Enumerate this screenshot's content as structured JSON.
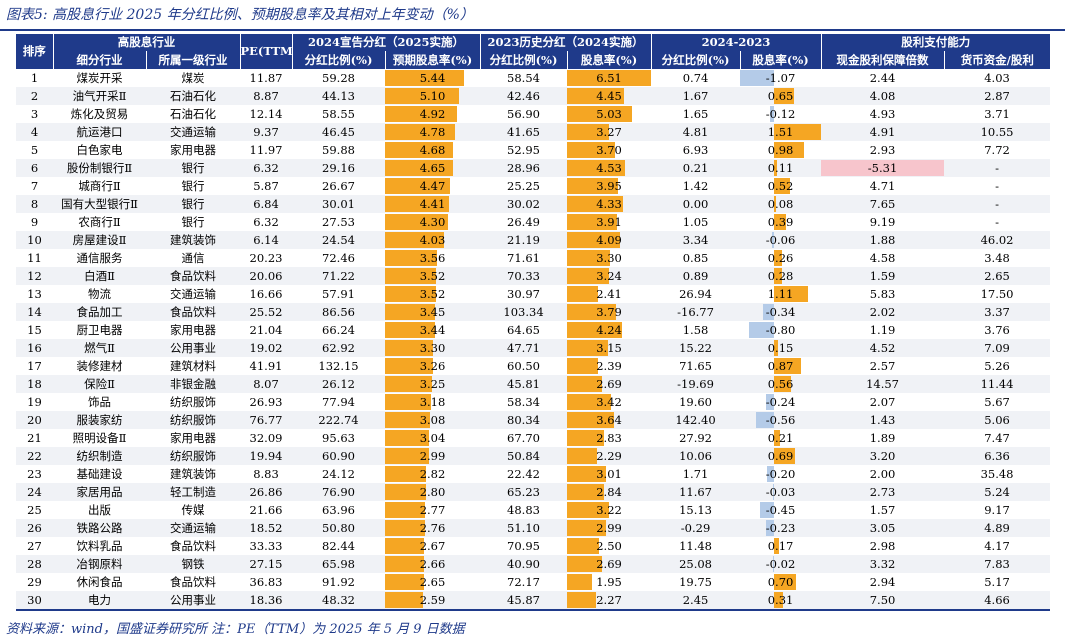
{
  "title": "图表5: 高股息行业 2025 年分红比例、预期股息率及其相对上年变动（%）",
  "footnote": "资料来源：wind，国盛证券研究所 注：PE（TTM）为 2025 年 5 月 9 日数据",
  "headers": {
    "rank": "排序",
    "group_industry": "高股息行业",
    "pe": "PE(TTM)",
    "group_2024": "2024宣告分红（2025实施）",
    "group_2023": "2023历史分红（2024实施）",
    "group_change": "2024-2023",
    "group_capacity": "股利支付能力",
    "sub_industry": "细分行业",
    "sw1": "所属一级行业",
    "payout_2024": "分红比例(%)",
    "yield_2024": "预期股息率(%)",
    "payout_2023": "分红比例(%)",
    "yield_2023": "股息率(%)",
    "payout_change": "分红比例(%)",
    "yield_change": "股息率(%)",
    "cash_coverage": "现金股利保障倍数",
    "cash_ratio": "货币资金/股利"
  },
  "rows": [
    {
      "rank": "1",
      "sub": "煤炭开采",
      "sw1": "煤炭",
      "pe": "11.87",
      "payout_2024": "59.28",
      "yield_2024": "5.44",
      "payout_2023": "58.54",
      "yield_2023": "6.51",
      "payout_chg": "0.74",
      "yield_chg": "-1.07",
      "coverage": "2.44",
      "cash": "4.03"
    },
    {
      "rank": "2",
      "sub": "油气开采Ⅱ",
      "sw1": "石油石化",
      "pe": "8.87",
      "payout_2024": "44.13",
      "yield_2024": "5.10",
      "payout_2023": "42.46",
      "yield_2023": "4.45",
      "payout_chg": "1.67",
      "yield_chg": "0.65",
      "coverage": "4.08",
      "cash": "2.87"
    },
    {
      "rank": "3",
      "sub": "炼化及贸易",
      "sw1": "石油石化",
      "pe": "12.14",
      "payout_2024": "58.55",
      "yield_2024": "4.92",
      "payout_2023": "56.90",
      "yield_2023": "5.03",
      "payout_chg": "1.65",
      "yield_chg": "-0.12",
      "coverage": "4.93",
      "cash": "3.71"
    },
    {
      "rank": "4",
      "sub": "航运港口",
      "sw1": "交通运输",
      "pe": "9.37",
      "payout_2024": "46.45",
      "yield_2024": "4.78",
      "payout_2023": "41.65",
      "yield_2023": "3.27",
      "payout_chg": "4.81",
      "yield_chg": "1.51",
      "coverage": "4.91",
      "cash": "10.55"
    },
    {
      "rank": "5",
      "sub": "白色家电",
      "sw1": "家用电器",
      "pe": "11.97",
      "payout_2024": "59.88",
      "yield_2024": "4.68",
      "payout_2023": "52.95",
      "yield_2023": "3.70",
      "payout_chg": "6.93",
      "yield_chg": "0.98",
      "coverage": "2.93",
      "cash": "7.72"
    },
    {
      "rank": "6",
      "sub": "股份制银行Ⅱ",
      "sw1": "银行",
      "pe": "6.32",
      "payout_2024": "29.16",
      "yield_2024": "4.65",
      "payout_2023": "28.96",
      "yield_2023": "4.53",
      "payout_chg": "0.21",
      "yield_chg": "0.11",
      "coverage": "-5.31",
      "cash": "-"
    },
    {
      "rank": "7",
      "sub": "城商行Ⅱ",
      "sw1": "银行",
      "pe": "5.87",
      "payout_2024": "26.67",
      "yield_2024": "4.47",
      "payout_2023": "25.25",
      "yield_2023": "3.95",
      "payout_chg": "1.42",
      "yield_chg": "0.52",
      "coverage": "4.71",
      "cash": "-"
    },
    {
      "rank": "8",
      "sub": "国有大型银行Ⅱ",
      "sw1": "银行",
      "pe": "6.84",
      "payout_2024": "30.01",
      "yield_2024": "4.41",
      "payout_2023": "30.02",
      "yield_2023": "4.33",
      "payout_chg": "0.00",
      "yield_chg": "0.08",
      "coverage": "7.65",
      "cash": "-"
    },
    {
      "rank": "9",
      "sub": "农商行Ⅱ",
      "sw1": "银行",
      "pe": "6.32",
      "payout_2024": "27.53",
      "yield_2024": "4.30",
      "payout_2023": "26.49",
      "yield_2023": "3.91",
      "payout_chg": "1.05",
      "yield_chg": "0.39",
      "coverage": "9.19",
      "cash": "-"
    },
    {
      "rank": "10",
      "sub": "房屋建设Ⅱ",
      "sw1": "建筑装饰",
      "pe": "6.14",
      "payout_2024": "24.54",
      "yield_2024": "4.03",
      "payout_2023": "21.19",
      "yield_2023": "4.09",
      "payout_chg": "3.34",
      "yield_chg": "-0.06",
      "coverage": "1.88",
      "cash": "46.02"
    },
    {
      "rank": "11",
      "sub": "通信服务",
      "sw1": "通信",
      "pe": "20.23",
      "payout_2024": "72.46",
      "yield_2024": "3.56",
      "payout_2023": "71.61",
      "yield_2023": "3.30",
      "payout_chg": "0.85",
      "yield_chg": "0.26",
      "coverage": "4.58",
      "cash": "3.48"
    },
    {
      "rank": "12",
      "sub": "白酒Ⅱ",
      "sw1": "食品饮料",
      "pe": "20.06",
      "payout_2024": "71.22",
      "yield_2024": "3.52",
      "payout_2023": "70.33",
      "yield_2023": "3.24",
      "payout_chg": "0.89",
      "yield_chg": "0.28",
      "coverage": "1.59",
      "cash": "2.65"
    },
    {
      "rank": "13",
      "sub": "物流",
      "sw1": "交通运输",
      "pe": "16.66",
      "payout_2024": "57.91",
      "yield_2024": "3.52",
      "payout_2023": "30.97",
      "yield_2023": "2.41",
      "payout_chg": "26.94",
      "yield_chg": "1.11",
      "coverage": "5.83",
      "cash": "17.50"
    },
    {
      "rank": "14",
      "sub": "食品加工",
      "sw1": "食品饮料",
      "pe": "25.52",
      "payout_2024": "86.56",
      "yield_2024": "3.45",
      "payout_2023": "103.34",
      "yield_2023": "3.79",
      "payout_chg": "-16.77",
      "yield_chg": "-0.34",
      "coverage": "2.02",
      "cash": "3.37"
    },
    {
      "rank": "15",
      "sub": "厨卫电器",
      "sw1": "家用电器",
      "pe": "21.04",
      "payout_2024": "66.24",
      "yield_2024": "3.44",
      "payout_2023": "64.65",
      "yield_2023": "4.24",
      "payout_chg": "1.58",
      "yield_chg": "-0.80",
      "coverage": "1.19",
      "cash": "3.76"
    },
    {
      "rank": "16",
      "sub": "燃气Ⅱ",
      "sw1": "公用事业",
      "pe": "19.02",
      "payout_2024": "62.92",
      "yield_2024": "3.30",
      "payout_2023": "47.71",
      "yield_2023": "3.15",
      "payout_chg": "15.22",
      "yield_chg": "0.15",
      "coverage": "4.52",
      "cash": "7.09"
    },
    {
      "rank": "17",
      "sub": "装修建材",
      "sw1": "建筑材料",
      "pe": "41.91",
      "payout_2024": "132.15",
      "yield_2024": "3.26",
      "payout_2023": "60.50",
      "yield_2023": "2.39",
      "payout_chg": "71.65",
      "yield_chg": "0.87",
      "coverage": "2.57",
      "cash": "5.26"
    },
    {
      "rank": "18",
      "sub": "保险Ⅱ",
      "sw1": "非银金融",
      "pe": "8.07",
      "payout_2024": "26.12",
      "yield_2024": "3.25",
      "payout_2023": "45.81",
      "yield_2023": "2.69",
      "payout_chg": "-19.69",
      "yield_chg": "0.56",
      "coverage": "14.57",
      "cash": "11.44"
    },
    {
      "rank": "19",
      "sub": "饰品",
      "sw1": "纺织服饰",
      "pe": "26.93",
      "payout_2024": "77.94",
      "yield_2024": "3.18",
      "payout_2023": "58.34",
      "yield_2023": "3.42",
      "payout_chg": "19.60",
      "yield_chg": "-0.24",
      "coverage": "2.07",
      "cash": "5.67"
    },
    {
      "rank": "20",
      "sub": "服装家纺",
      "sw1": "纺织服饰",
      "pe": "76.77",
      "payout_2024": "222.74",
      "yield_2024": "3.08",
      "payout_2023": "80.34",
      "yield_2023": "3.64",
      "payout_chg": "142.40",
      "yield_chg": "-0.56",
      "coverage": "1.43",
      "cash": "5.06"
    },
    {
      "rank": "21",
      "sub": "照明设备Ⅱ",
      "sw1": "家用电器",
      "pe": "32.09",
      "payout_2024": "95.63",
      "yield_2024": "3.04",
      "payout_2023": "67.70",
      "yield_2023": "2.83",
      "payout_chg": "27.92",
      "yield_chg": "0.21",
      "coverage": "1.89",
      "cash": "7.47"
    },
    {
      "rank": "22",
      "sub": "纺织制造",
      "sw1": "纺织服饰",
      "pe": "19.94",
      "payout_2024": "60.90",
      "yield_2024": "2.99",
      "payout_2023": "50.84",
      "yield_2023": "2.29",
      "payout_chg": "10.06",
      "yield_chg": "0.69",
      "coverage": "3.20",
      "cash": "6.36"
    },
    {
      "rank": "23",
      "sub": "基础建设",
      "sw1": "建筑装饰",
      "pe": "8.83",
      "payout_2024": "24.12",
      "yield_2024": "2.82",
      "payout_2023": "22.42",
      "yield_2023": "3.01",
      "payout_chg": "1.71",
      "yield_chg": "-0.20",
      "coverage": "2.00",
      "cash": "35.48"
    },
    {
      "rank": "24",
      "sub": "家居用品",
      "sw1": "轻工制造",
      "pe": "26.86",
      "payout_2024": "76.90",
      "yield_2024": "2.80",
      "payout_2023": "65.23",
      "yield_2023": "2.84",
      "payout_chg": "11.67",
      "yield_chg": "-0.03",
      "coverage": "2.73",
      "cash": "5.24"
    },
    {
      "rank": "25",
      "sub": "出版",
      "sw1": "传媒",
      "pe": "21.66",
      "payout_2024": "63.96",
      "yield_2024": "2.77",
      "payout_2023": "48.83",
      "yield_2023": "3.22",
      "payout_chg": "15.13",
      "yield_chg": "-0.45",
      "coverage": "1.57",
      "cash": "9.17"
    },
    {
      "rank": "26",
      "sub": "铁路公路",
      "sw1": "交通运输",
      "pe": "18.52",
      "payout_2024": "50.80",
      "yield_2024": "2.76",
      "payout_2023": "51.10",
      "yield_2023": "2.99",
      "payout_chg": "-0.29",
      "yield_chg": "-0.23",
      "coverage": "3.05",
      "cash": "4.89"
    },
    {
      "rank": "27",
      "sub": "饮料乳品",
      "sw1": "食品饮料",
      "pe": "33.33",
      "payout_2024": "82.44",
      "yield_2024": "2.67",
      "payout_2023": "70.95",
      "yield_2023": "2.50",
      "payout_chg": "11.48",
      "yield_chg": "0.17",
      "coverage": "2.98",
      "cash": "4.17"
    },
    {
      "rank": "28",
      "sub": "冶钢原料",
      "sw1": "钢铁",
      "pe": "27.15",
      "payout_2024": "65.98",
      "yield_2024": "2.66",
      "payout_2023": "40.90",
      "yield_2023": "2.69",
      "payout_chg": "25.08",
      "yield_chg": "-0.02",
      "coverage": "3.32",
      "cash": "7.83"
    },
    {
      "rank": "29",
      "sub": "休闲食品",
      "sw1": "食品饮料",
      "pe": "36.83",
      "payout_2024": "91.92",
      "yield_2024": "2.65",
      "payout_2023": "72.17",
      "yield_2023": "1.95",
      "payout_chg": "19.75",
      "yield_chg": "0.70",
      "coverage": "2.94",
      "cash": "5.17"
    },
    {
      "rank": "30",
      "sub": "电力",
      "sw1": "公用事业",
      "pe": "18.36",
      "payout_2024": "48.32",
      "yield_2024": "2.59",
      "payout_2023": "45.87",
      "yield_2023": "2.27",
      "payout_chg": "2.45",
      "yield_chg": "0.31",
      "coverage": "7.50",
      "cash": "4.66"
    }
  ],
  "bar_scales": {
    "yield_max": 6.51,
    "change_min": -1.07,
    "change_max": 1.51,
    "coverage_min": -5.31
  }
}
